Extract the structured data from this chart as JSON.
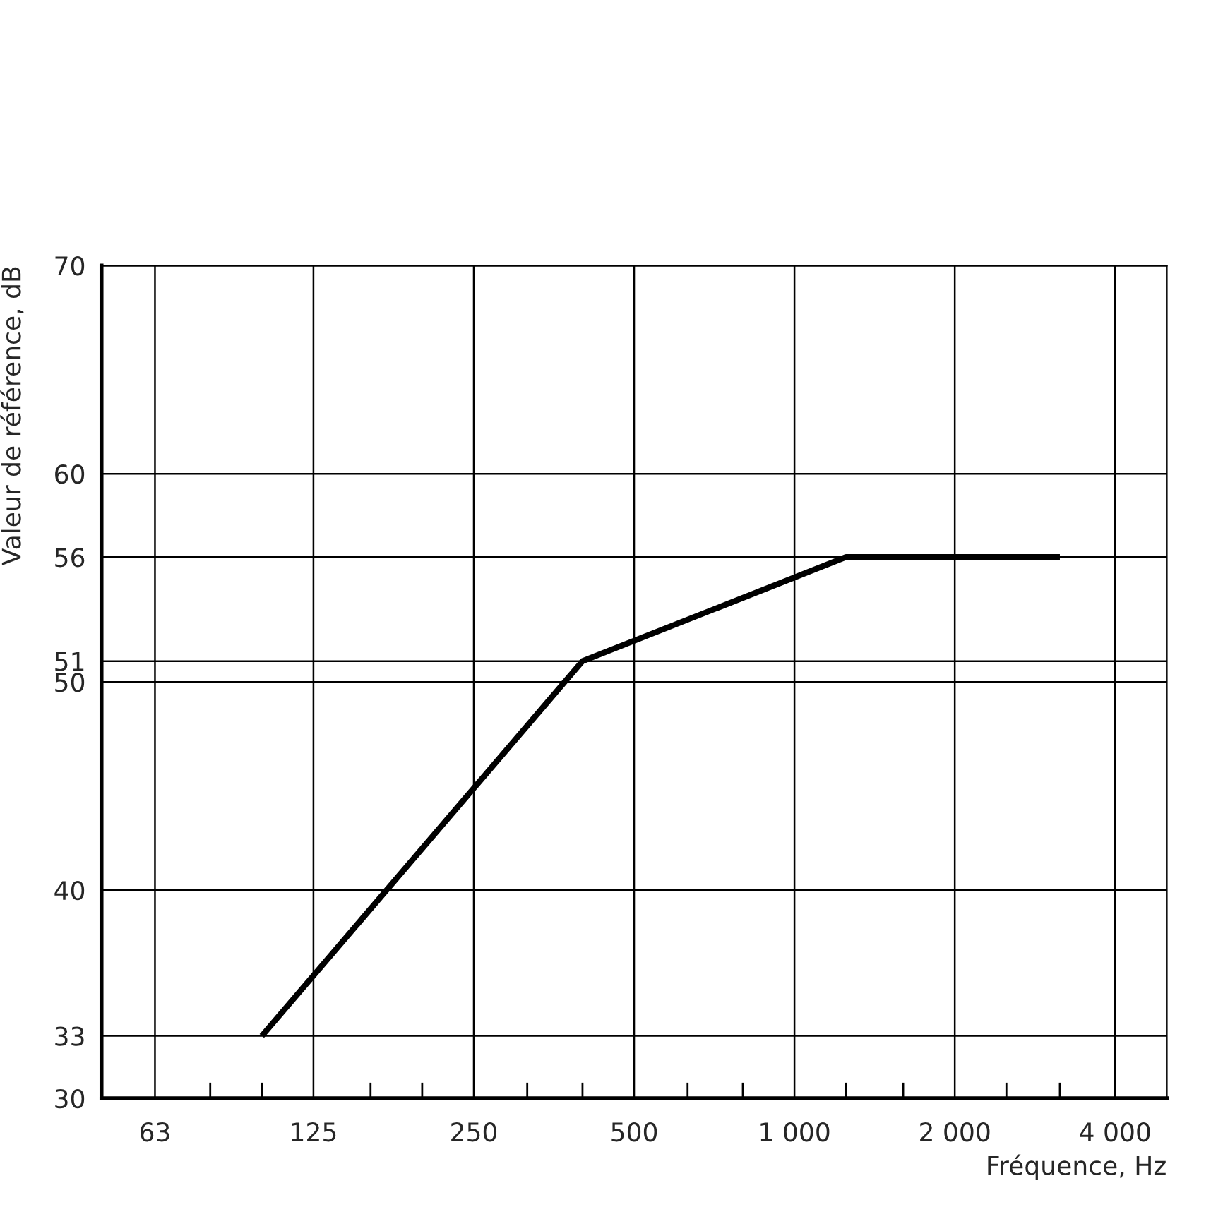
{
  "chart_data": {
    "type": "line",
    "xlabel": "Fréquence, Hz",
    "ylabel": "Valeur de référence, dB",
    "x": [
      100,
      400,
      1250,
      3150
    ],
    "series": [
      {
        "color": "#000000",
        "values": [
          33,
          51,
          56,
          56
        ]
      }
    ],
    "log": "x",
    "xlim": [
      50,
      5000
    ],
    "xticks": [
      {
        "value": 63,
        "label": "63"
      },
      {
        "value": 80,
        "label": null
      },
      {
        "value": 100,
        "label": null
      },
      125,
      {
        "value": 160,
        "label": null
      },
      {
        "value": 200,
        "label": null
      },
      250,
      {
        "value": 315,
        "label": null
      },
      {
        "value": 400,
        "label": null
      },
      500,
      {
        "value": 630,
        "label": null
      },
      {
        "value": 800,
        "label": null
      },
      {
        "value": 1000,
        "label": "1 000"
      },
      {
        "value": 1250,
        "label": null
      },
      {
        "value": 1600,
        "label": null
      },
      {
        "value": 2000,
        "label": "2 000"
      },
      {
        "value": 2500,
        "label": null
      },
      {
        "value": 3150,
        "label": null
      },
      {
        "value": 4000,
        "label": "4 000"
      }
    ],
    "ylim": [
      30,
      70
    ],
    "yticks": [
      30,
      33,
      40,
      50,
      51,
      56,
      60,
      70
    ],
    "grid": true,
    "line_style": "solid",
    "marker": "none"
  }
}
